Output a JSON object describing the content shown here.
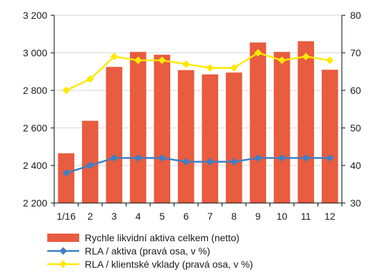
{
  "chart_data": {
    "type": "bar",
    "categories": [
      "1/16",
      "2",
      "3",
      "4",
      "5",
      "6",
      "7",
      "8",
      "9",
      "10",
      "11",
      "12"
    ],
    "y_left": {
      "min": 2200,
      "max": 3200,
      "ticks": [
        "2 200",
        "2 400",
        "2 600",
        "2 800",
        "3 000",
        "3 200"
      ],
      "tick_values": [
        2200,
        2400,
        2600,
        2800,
        3000,
        3200
      ]
    },
    "y_right": {
      "min": 30,
      "max": 80,
      "ticks": [
        "30",
        "40",
        "50",
        "60",
        "70",
        "80"
      ],
      "tick_values": [
        30,
        40,
        50,
        60,
        70,
        80
      ]
    },
    "grid": true,
    "legend_position": "bottom",
    "series": [
      {
        "name": "Rychle likvidní aktiva celkem (netto)",
        "kind": "bar",
        "axis": "left",
        "color": "#e85c3f",
        "values": [
          2465,
          2638,
          2925,
          3005,
          2990,
          2908,
          2885,
          2895,
          3055,
          3005,
          3062,
          2910
        ]
      },
      {
        "name": "RLA / aktiva (pravá osa, v %)",
        "kind": "line",
        "axis": "right",
        "color": "#3f7fc4",
        "marker": "diamond",
        "values": [
          38,
          40,
          42,
          42,
          42,
          41,
          41,
          41,
          42,
          42,
          42,
          42
        ]
      },
      {
        "name": "RLA / klientské vklady (pravá osa, v %)",
        "kind": "line",
        "axis": "right",
        "color": "#ffe800",
        "marker": "diamond",
        "values": [
          60,
          63,
          69,
          68,
          68,
          67,
          66,
          66,
          70,
          68,
          69,
          68
        ]
      }
    ]
  }
}
